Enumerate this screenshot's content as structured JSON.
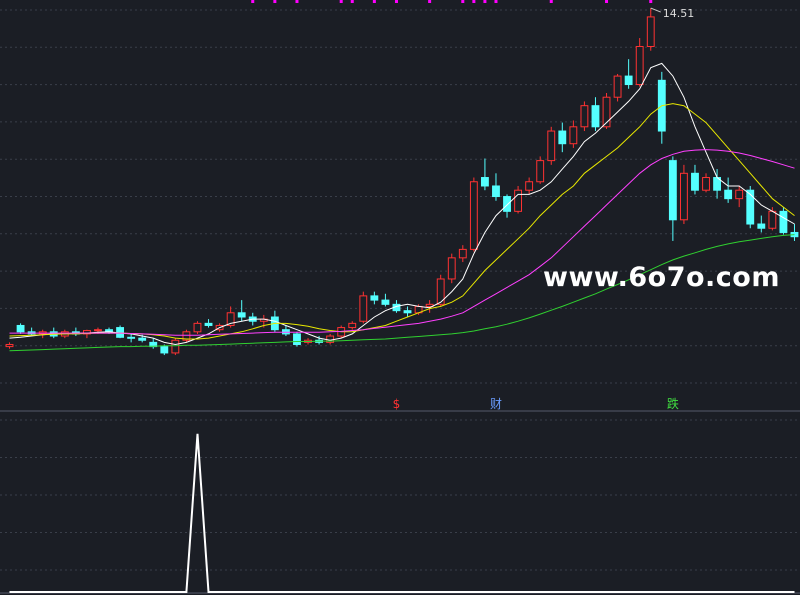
{
  "chart_data": {
    "type": "candlestick",
    "ylim": [
      5.0,
      14.7
    ],
    "up_color": "#ff3232",
    "down_color": "#54ffff",
    "grid": true,
    "open": [
      6.5,
      7.0,
      6.85,
      6.8,
      6.85,
      6.75,
      6.85,
      6.8,
      6.88,
      6.9,
      6.95,
      6.72,
      6.7,
      6.6,
      6.5,
      6.35,
      6.65,
      6.85,
      7.05,
      6.9,
      7.0,
      7.3,
      7.2,
      7.1,
      7.2,
      6.9,
      6.8,
      6.6,
      6.65,
      6.6,
      6.75,
      6.95,
      7.1,
      7.7,
      7.6,
      7.5,
      7.35,
      7.3,
      7.45,
      7.5,
      8.1,
      8.6,
      8.8,
      10.5,
      10.3,
      10.05,
      9.7,
      10.2,
      10.4,
      10.9,
      11.6,
      11.3,
      11.7,
      12.2,
      11.7,
      12.4,
      12.9,
      12.7,
      13.6,
      12.8,
      10.9,
      9.5,
      10.6,
      10.2,
      10.5,
      10.2,
      10.0,
      10.2,
      9.4,
      9.3,
      9.7,
      9.2
    ],
    "high": [
      6.6,
      7.05,
      6.95,
      6.9,
      6.95,
      6.9,
      6.95,
      6.9,
      6.95,
      6.95,
      7.0,
      6.8,
      6.78,
      6.7,
      6.55,
      6.7,
      6.9,
      7.1,
      7.15,
      7.05,
      7.45,
      7.6,
      7.3,
      7.25,
      7.35,
      7.0,
      6.85,
      6.7,
      6.75,
      6.8,
      7.0,
      7.1,
      7.8,
      7.8,
      7.75,
      7.6,
      7.45,
      7.5,
      7.6,
      8.2,
      8.7,
      8.9,
      10.5,
      10.95,
      10.6,
      10.1,
      10.3,
      10.5,
      11.0,
      11.7,
      11.8,
      11.85,
      12.3,
      12.4,
      12.5,
      12.95,
      13.3,
      13.8,
      14.51,
      13.0,
      11.0,
      10.8,
      10.8,
      10.6,
      10.7,
      10.5,
      10.3,
      10.3,
      9.6,
      9.8,
      9.8,
      9.4
    ],
    "low": [
      6.45,
      6.8,
      6.75,
      6.7,
      6.7,
      6.7,
      6.75,
      6.7,
      6.8,
      6.8,
      6.7,
      6.6,
      6.6,
      6.45,
      6.3,
      6.3,
      6.6,
      6.8,
      6.95,
      6.85,
      6.95,
      7.1,
      7.0,
      6.95,
      6.85,
      6.75,
      6.5,
      6.55,
      6.55,
      6.55,
      6.7,
      6.9,
      7.05,
      7.5,
      7.45,
      7.3,
      7.2,
      7.25,
      7.3,
      7.45,
      8.0,
      8.5,
      8.75,
      10.2,
      9.95,
      9.55,
      9.65,
      10.1,
      10.35,
      10.8,
      11.1,
      11.2,
      11.6,
      11.6,
      11.65,
      12.3,
      12.6,
      12.65,
      13.5,
      11.3,
      9.0,
      9.4,
      10.1,
      10.15,
      10.0,
      9.9,
      9.8,
      9.3,
      9.2,
      9.25,
      9.15,
      9.0
    ],
    "close": [
      6.55,
      6.85,
      6.8,
      6.85,
      6.75,
      6.85,
      6.8,
      6.88,
      6.9,
      6.85,
      6.72,
      6.7,
      6.65,
      6.5,
      6.35,
      6.65,
      6.85,
      7.05,
      7.0,
      7.0,
      7.3,
      7.2,
      7.1,
      7.15,
      6.9,
      6.8,
      6.55,
      6.65,
      6.6,
      6.75,
      6.95,
      7.05,
      7.7,
      7.6,
      7.5,
      7.35,
      7.3,
      7.45,
      7.5,
      8.1,
      8.6,
      8.8,
      10.4,
      10.3,
      10.05,
      9.7,
      10.2,
      10.4,
      10.9,
      11.6,
      11.3,
      11.7,
      12.2,
      11.7,
      12.4,
      12.9,
      12.7,
      13.6,
      14.3,
      11.6,
      9.5,
      10.6,
      10.2,
      10.5,
      10.2,
      10.0,
      10.2,
      9.4,
      9.3,
      9.7,
      9.2,
      9.1
    ],
    "series": [
      {
        "color": "#ffffff",
        "values": [
          6.7,
          6.72,
          6.75,
          6.78,
          6.8,
          6.8,
          6.82,
          6.82,
          6.84,
          6.85,
          6.82,
          6.8,
          6.75,
          6.7,
          6.6,
          6.55,
          6.6,
          6.7,
          6.8,
          6.95,
          7.05,
          7.1,
          7.15,
          7.15,
          7.1,
          7.0,
          6.9,
          6.8,
          6.7,
          6.65,
          6.7,
          6.8,
          7.0,
          7.2,
          7.35,
          7.45,
          7.5,
          7.45,
          7.42,
          7.55,
          7.8,
          8.1,
          8.7,
          9.2,
          9.6,
          9.85,
          10.1,
          10.1,
          10.2,
          10.4,
          10.7,
          11.0,
          11.35,
          11.55,
          11.8,
          12.05,
          12.3,
          12.6,
          13.1,
          13.2,
          12.9,
          12.4,
          11.7,
          11.1,
          10.5,
          10.3,
          10.3,
          10.1,
          9.85,
          9.7,
          9.55,
          9.4
        ]
      },
      {
        "color": "#e8e800",
        "values": [
          6.75,
          6.76,
          6.77,
          6.78,
          6.79,
          6.8,
          6.8,
          6.81,
          6.82,
          6.82,
          6.82,
          6.81,
          6.8,
          6.78,
          6.75,
          6.7,
          6.68,
          6.68,
          6.7,
          6.75,
          6.8,
          6.85,
          6.92,
          7.0,
          7.05,
          7.05,
          7.02,
          6.98,
          6.92,
          6.88,
          6.85,
          6.85,
          6.9,
          6.95,
          7.0,
          7.1,
          7.2,
          7.3,
          7.4,
          7.45,
          7.55,
          7.7,
          8.0,
          8.3,
          8.55,
          8.8,
          9.05,
          9.3,
          9.6,
          9.85,
          10.1,
          10.3,
          10.6,
          10.8,
          11.0,
          11.2,
          11.45,
          11.7,
          12.0,
          12.2,
          12.25,
          12.2,
          12.0,
          11.8,
          11.5,
          11.2,
          10.9,
          10.6,
          10.3,
          10.0,
          9.8,
          9.6
        ]
      },
      {
        "color": "#ff40ff",
        "values": [
          6.82,
          6.82,
          6.82,
          6.82,
          6.82,
          6.82,
          6.82,
          6.82,
          6.82,
          6.82,
          6.82,
          6.81,
          6.8,
          6.79,
          6.78,
          6.77,
          6.77,
          6.77,
          6.78,
          6.79,
          6.8,
          6.81,
          6.82,
          6.83,
          6.84,
          6.84,
          6.84,
          6.84,
          6.84,
          6.85,
          6.86,
          6.88,
          6.9,
          6.93,
          6.96,
          6.99,
          7.02,
          7.05,
          7.1,
          7.15,
          7.22,
          7.3,
          7.45,
          7.6,
          7.75,
          7.9,
          8.05,
          8.2,
          8.4,
          8.6,
          8.85,
          9.1,
          9.35,
          9.6,
          9.85,
          10.1,
          10.35,
          10.6,
          10.8,
          10.95,
          11.05,
          11.12,
          11.15,
          11.16,
          11.15,
          11.12,
          11.08,
          11.02,
          10.95,
          10.88,
          10.8,
          10.72
        ]
      },
      {
        "color": "#30d030",
        "values": [
          6.4,
          6.41,
          6.42,
          6.43,
          6.44,
          6.45,
          6.46,
          6.47,
          6.48,
          6.49,
          6.5,
          6.5,
          6.51,
          6.51,
          6.52,
          6.52,
          6.53,
          6.53,
          6.54,
          6.55,
          6.56,
          6.57,
          6.58,
          6.59,
          6.6,
          6.61,
          6.62,
          6.62,
          6.63,
          6.63,
          6.64,
          6.65,
          6.66,
          6.67,
          6.68,
          6.7,
          6.72,
          6.74,
          6.76,
          6.78,
          6.8,
          6.83,
          6.87,
          6.92,
          6.97,
          7.03,
          7.1,
          7.18,
          7.27,
          7.36,
          7.45,
          7.55,
          7.65,
          7.75,
          7.86,
          7.97,
          8.08,
          8.2,
          8.32,
          8.44,
          8.55,
          8.64,
          8.72,
          8.8,
          8.87,
          8.93,
          8.98,
          9.02,
          9.06,
          9.1,
          9.13,
          9.15
        ]
      }
    ],
    "indicator": {
      "type": "line",
      "color": "#ffffff",
      "ylim": [
        0,
        1.1
      ],
      "values": [
        0,
        0,
        0,
        0,
        0,
        0,
        0,
        0,
        0,
        0,
        0,
        0,
        0,
        0,
        0,
        0,
        0,
        1,
        0,
        0,
        0,
        0,
        0,
        0,
        0,
        0,
        0,
        0,
        0,
        0,
        0,
        0,
        0,
        0,
        0,
        0,
        0,
        0,
        0,
        0,
        0,
        0,
        0,
        0,
        0,
        0,
        0,
        0,
        0,
        0,
        0,
        0,
        0,
        0,
        0,
        0,
        0,
        0,
        0,
        0,
        0,
        0,
        0,
        0,
        0,
        0,
        0,
        0,
        0,
        0,
        0,
        0
      ]
    },
    "signals": [
      {
        "index": 35,
        "label": "$",
        "color": "#ff3232"
      },
      {
        "index": 44,
        "label": "财",
        "color": "#6a9cff"
      },
      {
        "index": 60,
        "label": "跌",
        "color": "#40e040"
      }
    ],
    "top_markers": {
      "color": "#ff00ff",
      "indices": [
        22,
        24,
        26,
        30,
        31,
        33,
        35,
        38,
        41,
        42,
        43,
        44,
        49,
        54,
        58
      ]
    },
    "watermark": "www.6o7o.com"
  }
}
